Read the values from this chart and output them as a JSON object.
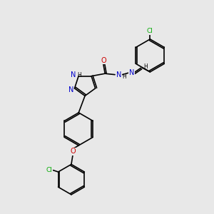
{
  "background_color": "#e8e8e8",
  "bond_color": "#000000",
  "atom_colors": {
    "N": "#0000cc",
    "O": "#cc0000",
    "Cl": "#00aa00",
    "H": "#000000",
    "C": "#000000"
  },
  "figsize": [
    3.0,
    3.0
  ],
  "dpi": 100,
  "lw": 1.2
}
